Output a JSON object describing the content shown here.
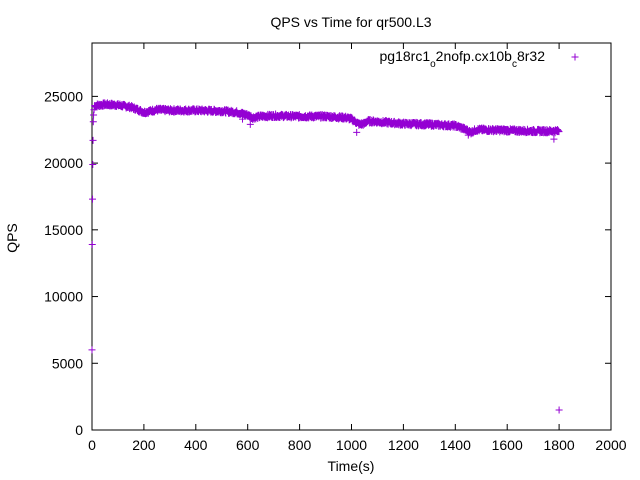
{
  "chart_data": {
    "type": "scatter",
    "title": "QPS vs Time for qr500.L3",
    "xlabel": "Time(s)",
    "ylabel": "QPS",
    "xlim": [
      0,
      2000
    ],
    "ylim": [
      0,
      29000
    ],
    "x_ticks": [
      0,
      200,
      400,
      600,
      800,
      1000,
      1200,
      1400,
      1600,
      1800,
      2000
    ],
    "y_ticks": [
      0,
      5000,
      10000,
      15000,
      20000,
      25000
    ],
    "grid": false,
    "legend_position": "top-right",
    "marker": "plus",
    "series": [
      {
        "name_parts": [
          "pg18rc1",
          "o",
          "2nofp.cx10b",
          "c",
          "8r32"
        ],
        "color": "#9400d3",
        "trend": [
          [
            10,
            24300
          ],
          [
            50,
            24400
          ],
          [
            100,
            24350
          ],
          [
            150,
            24200
          ],
          [
            190,
            23900
          ],
          [
            200,
            23800
          ],
          [
            250,
            24000
          ],
          [
            300,
            23950
          ],
          [
            400,
            23950
          ],
          [
            500,
            23900
          ],
          [
            560,
            23800
          ],
          [
            600,
            23600
          ],
          [
            620,
            23400
          ],
          [
            650,
            23500
          ],
          [
            700,
            23550
          ],
          [
            800,
            23500
          ],
          [
            900,
            23500
          ],
          [
            980,
            23400
          ],
          [
            1000,
            23300
          ],
          [
            1030,
            22900
          ],
          [
            1050,
            22950
          ],
          [
            1060,
            23150
          ],
          [
            1100,
            23100
          ],
          [
            1200,
            22950
          ],
          [
            1300,
            22900
          ],
          [
            1400,
            22800
          ],
          [
            1430,
            22600
          ],
          [
            1450,
            22400
          ],
          [
            1460,
            22300
          ],
          [
            1480,
            22500
          ],
          [
            1500,
            22500
          ],
          [
            1600,
            22450
          ],
          [
            1700,
            22400
          ],
          [
            1800,
            22400
          ]
        ],
        "extra_points": [
          [
            0,
            6000
          ],
          [
            1,
            13900
          ],
          [
            2,
            17300
          ],
          [
            3,
            19900
          ],
          [
            4,
            21700
          ],
          [
            5,
            23100
          ],
          [
            6,
            23600
          ],
          [
            8,
            24000
          ],
          [
            580,
            23300
          ],
          [
            610,
            22900
          ],
          [
            1020,
            22300
          ],
          [
            1450,
            22100
          ],
          [
            1780,
            21800
          ],
          [
            1800,
            1500
          ]
        ]
      }
    ]
  }
}
